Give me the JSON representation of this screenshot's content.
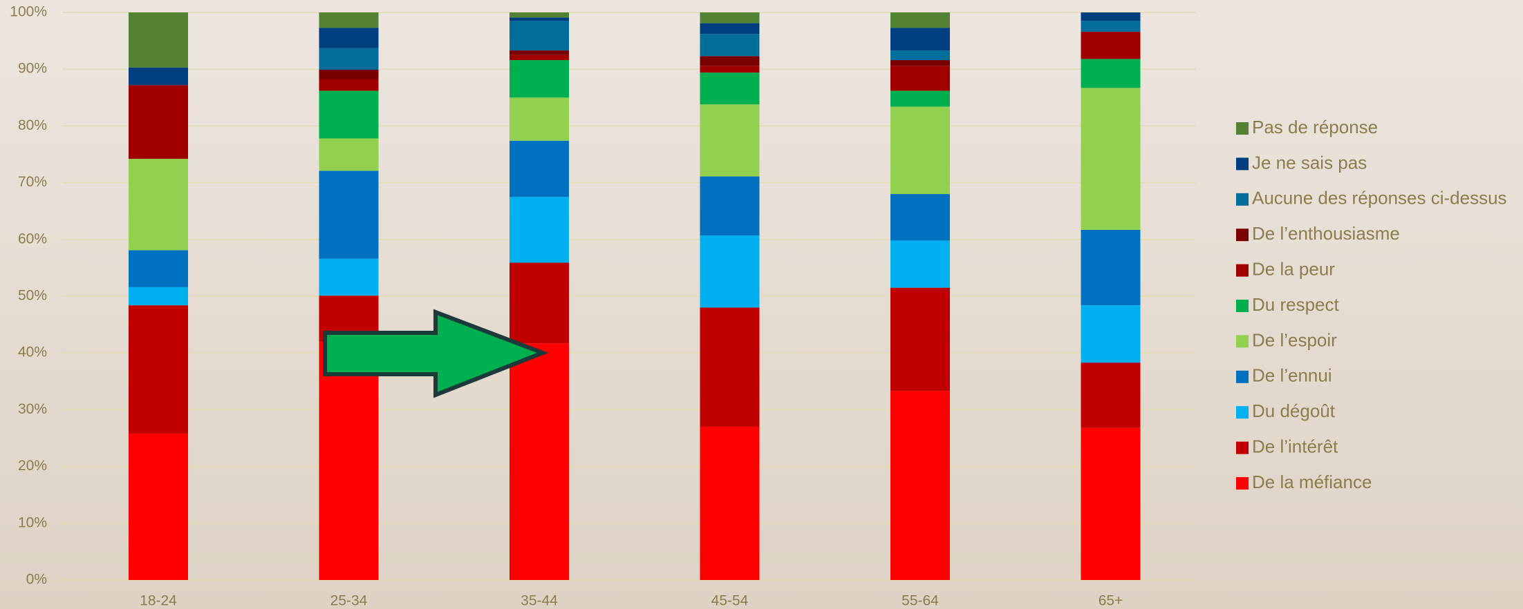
{
  "chart_data": {
    "type": "stacked_bar_100",
    "categories": [
      "18-24",
      "25-34",
      "35-44",
      "45-54",
      "55-64",
      "65+"
    ],
    "series": [
      {
        "name": "De la méfiance",
        "color": "#ff0000",
        "values": [
          25.8,
          42.0,
          41.7,
          27.0,
          33.3,
          26.8
        ]
      },
      {
        "name": "De l’intérêt",
        "color": "#c00000",
        "values": [
          22.6,
          8.1,
          14.2,
          21.0,
          18.2,
          11.5
        ]
      },
      {
        "name": "Du dégoût",
        "color": "#00b0f0",
        "values": [
          3.2,
          6.5,
          11.6,
          12.7,
          8.3,
          10.1
        ]
      },
      {
        "name": "De l’ennui",
        "color": "#0070c0",
        "values": [
          6.5,
          15.5,
          9.9,
          10.4,
          8.2,
          13.3
        ]
      },
      {
        "name": "De l’espoir",
        "color": "#92d050",
        "values": [
          16.1,
          5.7,
          7.6,
          12.7,
          15.4,
          25.0
        ]
      },
      {
        "name": "Du respect",
        "color": "#00b050",
        "values": [
          0,
          8.4,
          6.6,
          5.6,
          2.8,
          5.1
        ]
      },
      {
        "name": "De la peur",
        "color": "#a00000",
        "values": [
          13.0,
          2.0,
          0.9,
          1.2,
          4.4,
          4.8
        ]
      },
      {
        "name": "De l’enthousiasme",
        "color": "#7a0000",
        "values": [
          0,
          1.7,
          0.8,
          1.7,
          1.0,
          0
        ]
      },
      {
        "name": "Aucune des réponses ci-dessus",
        "color": "#006d9a",
        "values": [
          0,
          3.8,
          5.2,
          3.9,
          1.7,
          1.9
        ]
      },
      {
        "name": "Je ne sais pas",
        "color": "#003f7f",
        "values": [
          3.1,
          3.6,
          0.6,
          1.9,
          4.0,
          1.5
        ]
      },
      {
        "name": "Pas de réponse",
        "color": "#548235",
        "values": [
          9.7,
          2.7,
          0.9,
          1.9,
          2.7,
          0
        ]
      }
    ],
    "ylim": [
      0,
      100
    ],
    "yticks": [
      {
        "value": 0,
        "label": "0%"
      },
      {
        "value": 10,
        "label": "10%"
      },
      {
        "value": 20,
        "label": "20%"
      },
      {
        "value": 30,
        "label": "30%"
      },
      {
        "value": 40,
        "label": "40%"
      },
      {
        "value": 50,
        "label": "50%"
      },
      {
        "value": 60,
        "label": "60%"
      },
      {
        "value": 70,
        "label": "70%"
      },
      {
        "value": 80,
        "label": "80%"
      },
      {
        "value": 90,
        "label": "90%"
      },
      {
        "value": 100,
        "label": "100%"
      }
    ],
    "grid": true,
    "legend": "right"
  }
}
